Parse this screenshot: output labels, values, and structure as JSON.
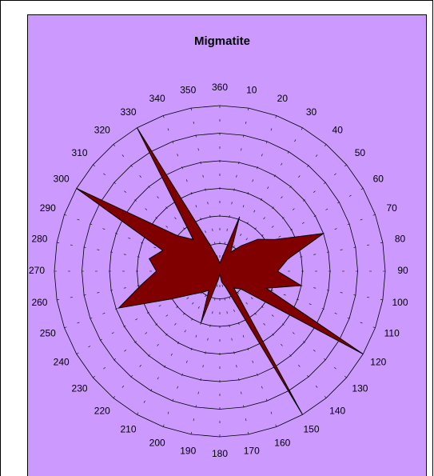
{
  "chart_data": {
    "type": "radar",
    "title": "Migmatite",
    "categories": [
      "360",
      "10",
      "20",
      "30",
      "40",
      "50",
      "60",
      "70",
      "80",
      "90",
      "100",
      "110",
      "120",
      "130",
      "140",
      "150",
      "160",
      "170",
      "180",
      "190",
      "200",
      "210",
      "220",
      "230",
      "240",
      "250",
      "260",
      "270",
      "280",
      "290",
      "300",
      "310",
      "320",
      "330",
      "340",
      "350"
    ],
    "values": [
      0.3,
      0.5,
      2.1,
      0.8,
      1.2,
      1.8,
      2.3,
      4.0,
      2.5,
      2.1,
      3.0,
      1.8,
      6.0,
      1.0,
      0.8,
      6.0,
      0.6,
      0.4,
      0.1,
      0.3,
      2.0,
      0.8,
      1.0,
      1.3,
      2.0,
      3.9,
      2.9,
      2.3,
      2.6,
      2.2,
      6.0,
      2.0,
      1.5,
      6.0,
      1.0,
      0.5
    ],
    "color": "#800000",
    "background": "#cc99ff",
    "ylim": [
      0,
      6
    ],
    "yticks": [
      0,
      1,
      2,
      3,
      4,
      5,
      6
    ],
    "grid": true
  }
}
